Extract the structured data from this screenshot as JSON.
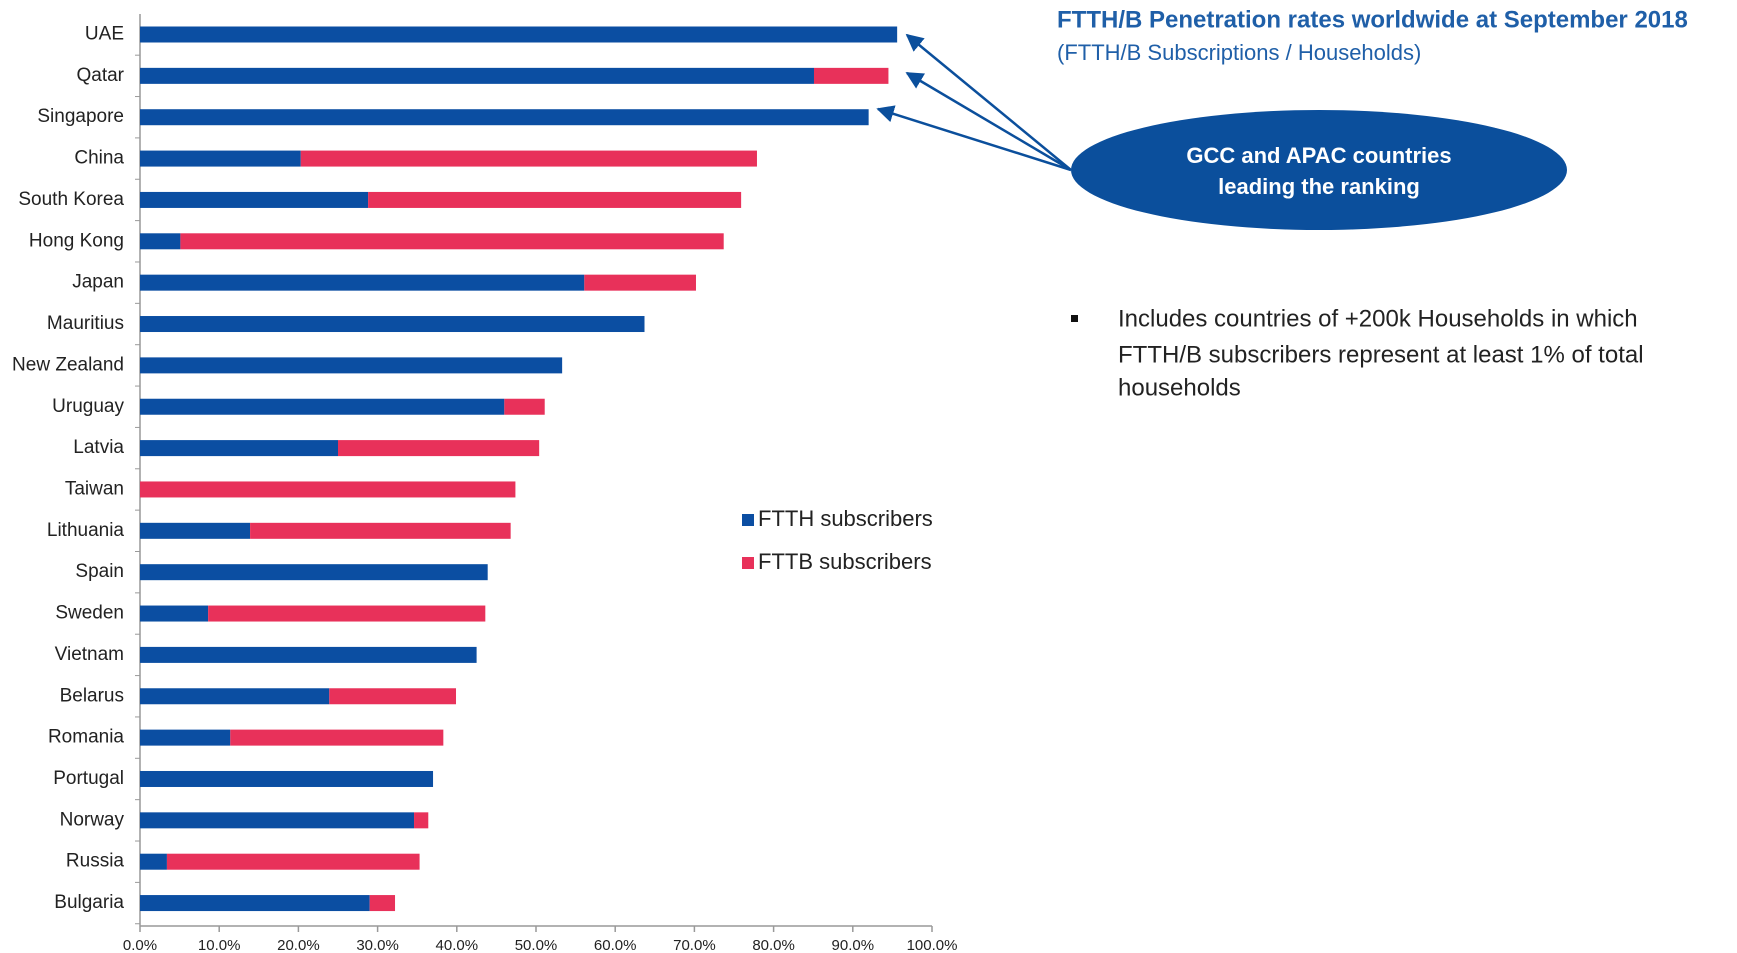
{
  "chart_data": {
    "type": "barh_stacked",
    "title": "FTTH/B Penetration rates worldwide at September 2018",
    "subtitle": "(FTTH/B Subscriptions / Households)",
    "callout": [
      "GCC and APAC countries",
      "leading the ranking"
    ],
    "note": [
      "Includes countries of +200k Households in which",
      "FTTH/B subscribers represent at least 1% of total",
      "households"
    ],
    "categories": [
      "UAE",
      "Qatar",
      "Singapore",
      "China",
      "South Korea",
      "Hong Kong",
      "Japan",
      "Mauritius",
      "New Zealand",
      "Uruguay",
      "Latvia",
      "Taiwan",
      "Lithuania",
      "Spain",
      "Sweden",
      "Vietnam",
      "Belarus",
      "Romania",
      "Portugal",
      "Norway",
      "Russia",
      "Bulgaria"
    ],
    "series": [
      {
        "name": "FTTH subscribers",
        "color": "#0b4ea2",
        "values": [
          95.6,
          85.1,
          92.0,
          20.3,
          28.8,
          5.1,
          56.1,
          63.7,
          53.3,
          46.0,
          25.0,
          0,
          13.9,
          43.9,
          8.6,
          42.5,
          23.9,
          11.4,
          37.0,
          34.6,
          3.4,
          29.0
        ]
      },
      {
        "name": "FTTB subscribers",
        "color": "#e8315a",
        "values": [
          0,
          9.4,
          0,
          57.6,
          47.1,
          68.6,
          14.1,
          0,
          0,
          5.1,
          25.4,
          47.4,
          32.9,
          0,
          35.0,
          0,
          16.0,
          26.9,
          0,
          1.8,
          31.9,
          3.2
        ]
      }
    ],
    "xlim": [
      0,
      100
    ],
    "xticks": [
      {
        "value": 0,
        "label": "0.0%"
      },
      {
        "value": 10,
        "label": "10.0%"
      },
      {
        "value": 20,
        "label": "20.0%"
      },
      {
        "value": 30,
        "label": "30.0%"
      },
      {
        "value": 40,
        "label": "40.0%"
      },
      {
        "value": 50,
        "label": "50.0%"
      },
      {
        "value": 60,
        "label": "60.0%"
      },
      {
        "value": 70,
        "label": "70.0%"
      },
      {
        "value": 80,
        "label": "80.0%"
      },
      {
        "value": 90,
        "label": "90.0%"
      },
      {
        "value": 100,
        "label": "100.0%"
      }
    ],
    "grid": false
  }
}
